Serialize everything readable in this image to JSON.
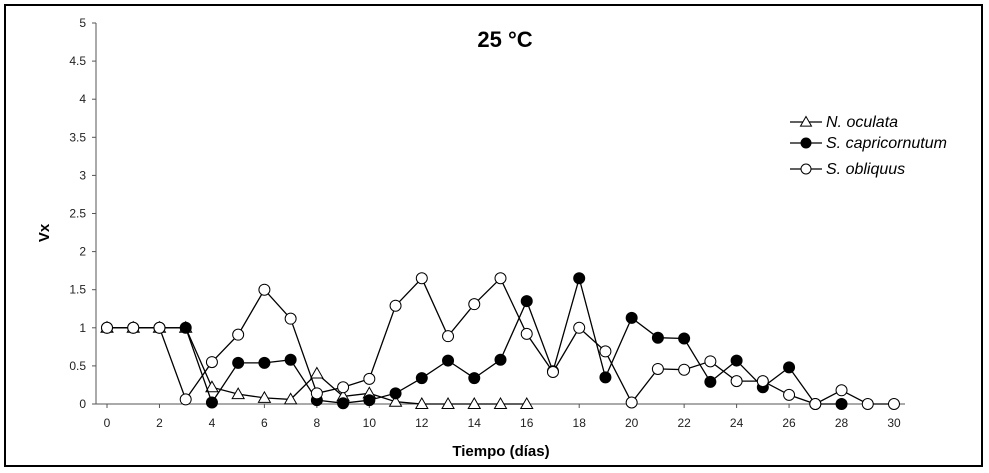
{
  "chart_data": {
    "type": "line",
    "title": "25 °C",
    "xlabel": "Tiempo (días)",
    "ylabel": "Vx",
    "xlim": [
      0,
      30
    ],
    "ylim": [
      0,
      5
    ],
    "xticks": [
      0,
      2,
      4,
      6,
      8,
      10,
      12,
      14,
      16,
      18,
      20,
      22,
      24,
      26,
      28,
      30
    ],
    "yticks": [
      0,
      0.5,
      1,
      1.5,
      2,
      2.5,
      3,
      3.5,
      4,
      4.5,
      5
    ],
    "grid": false,
    "legend_position": "right",
    "series": [
      {
        "name": "N. oculata",
        "marker": "open-triangle",
        "x": [
          0,
          1,
          2,
          3,
          4,
          5,
          6,
          7,
          8,
          9,
          10,
          11,
          12,
          13,
          14,
          15,
          16
        ],
        "y": [
          1,
          1,
          1,
          1,
          0.22,
          0.13,
          0.08,
          0.06,
          0.4,
          0.1,
          0.14,
          0.03,
          0,
          0,
          0,
          0,
          0
        ]
      },
      {
        "name": "S. capricornutum",
        "marker": "filled-circle",
        "x": [
          0,
          1,
          2,
          3,
          4,
          5,
          6,
          7,
          8,
          9,
          10,
          11,
          12,
          13,
          14,
          15,
          16,
          17,
          18,
          19,
          20,
          21,
          22,
          23,
          24,
          25,
          26,
          27,
          28
        ],
        "y": [
          1,
          1,
          1,
          1,
          0.02,
          0.54,
          0.54,
          0.58,
          0.05,
          0.01,
          0.05,
          0.14,
          0.34,
          0.57,
          0.34,
          0.58,
          1.35,
          0.43,
          1.65,
          0.35,
          1.13,
          0.87,
          0.86,
          0.29,
          0.57,
          0.22,
          0.48,
          0,
          0
        ]
      },
      {
        "name": "S. obliquus",
        "marker": "open-circle",
        "x": [
          0,
          1,
          2,
          3,
          4,
          5,
          6,
          7,
          8,
          9,
          10,
          11,
          12,
          13,
          14,
          15,
          16,
          17,
          18,
          19,
          20,
          21,
          22,
          23,
          24,
          25,
          26,
          27,
          28,
          29,
          30
        ],
        "y": [
          1,
          1,
          1,
          0.06,
          0.55,
          0.91,
          1.5,
          1.12,
          0.14,
          0.22,
          0.33,
          1.29,
          1.65,
          0.89,
          1.31,
          1.65,
          0.92,
          0.42,
          1,
          0.69,
          0.02,
          0.46,
          0.45,
          0.56,
          0.3,
          0.3,
          0.12,
          0,
          0.18,
          0,
          0
        ]
      }
    ]
  }
}
